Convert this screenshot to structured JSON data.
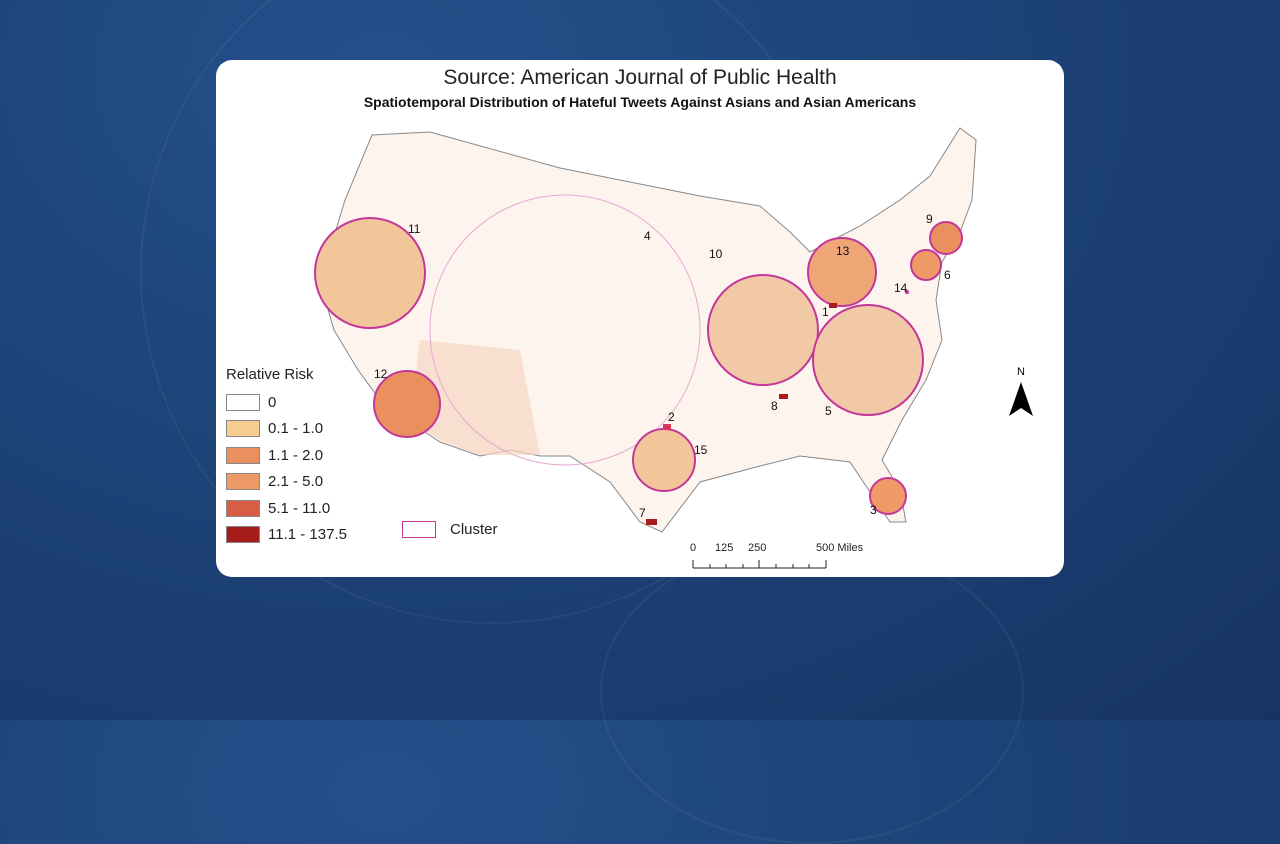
{
  "source": "Source: American Journal of Public Health",
  "title": "Spatiotemporal Distribution of Hateful Tweets Against Asians and Asian Americans",
  "legend": {
    "title": "Relative Risk",
    "items": [
      {
        "label": "0",
        "color": "#ffffff"
      },
      {
        "label": "0.1 - 1.0",
        "color": "#f6cc8f"
      },
      {
        "label": "1.1 - 2.0",
        "color": "#ea8f5e"
      },
      {
        "label": "2.1 - 5.0",
        "color": "#ee9a67"
      },
      {
        "label": "5.1 - 11.0",
        "color": "#d95c45"
      },
      {
        "label": "11.1 - 137.5",
        "color": "#a61c1a"
      }
    ],
    "cluster_label": "Cluster",
    "cluster_color": "#c3379a"
  },
  "clusters": [
    "1",
    "2",
    "3",
    "4",
    "5",
    "6",
    "7",
    "8",
    "9",
    "10",
    "11",
    "12",
    "13",
    "14",
    "15"
  ],
  "scale": {
    "ticks": [
      "0",
      "125",
      "250",
      "500 Miles"
    ]
  },
  "north": "N"
}
